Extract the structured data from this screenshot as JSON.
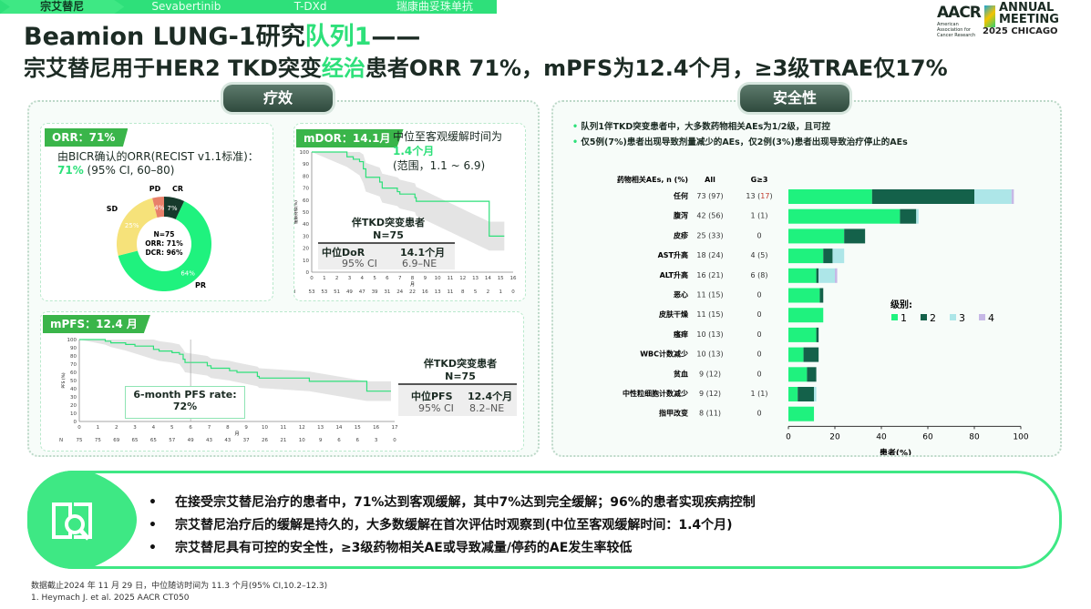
{
  "nav": {
    "items": [
      "宗艾替尼",
      "Sevabertinib",
      "T-DXd",
      "瑞康曲妥珠单抗"
    ],
    "active": 0
  },
  "title": {
    "line1_a": "Beamion LUNG-1研究",
    "line1_b": "队列1",
    "line1_c": "——",
    "line2_a": "宗艾替尼用于HER2 TKD突变",
    "line2_b": "经治",
    "line2_c": "患者ORR 71%，mPFS为12.4个月，≥3级TRAE仅17%"
  },
  "logo": {
    "org": "AACR",
    "org_sub": "American Association for Cancer Research",
    "event1": "ANNUAL",
    "event2": "MEETING",
    "event3": "2025 CHICAGO"
  },
  "sections": {
    "efficacy": "疗效",
    "safety": "安全性"
  },
  "orr": {
    "tag": "ORR：71%",
    "desc": "由BICR确认的ORR(RECIST v1.1标准)：",
    "value": "71%",
    "ci": " (95% CI, 60–80)",
    "center": [
      "N=75",
      "ORR: 71%",
      "DCR: 96%"
    ],
    "slices": [
      {
        "label": "CR",
        "value": 7,
        "color": "#163a2c"
      },
      {
        "label": "PR",
        "value": 64,
        "color": "#1ff27e"
      },
      {
        "label": "SD",
        "value": 25,
        "color": "#f6e27a"
      },
      {
        "label": "PD",
        "value": 4,
        "color": "#e8806a"
      }
    ]
  },
  "dor": {
    "tag": "mDOR：14.1月",
    "note1": "中位至客观缓解时间为",
    "note2": "1.4个月",
    "note3": "(范围，1.1 ~ 6.9)",
    "ylabel": "缓解持续(%)",
    "xlabel": "月",
    "group": "伴TKD突变患者",
    "n": "N=75",
    "row1": [
      "中位DoR",
      "14.1个月"
    ],
    "row2": [
      "95% CI",
      "6.9–NE"
    ],
    "xmax": 16,
    "risk_label": "N",
    "risk": [
      53,
      53,
      51,
      49,
      47,
      39,
      31,
      24,
      22,
      16,
      13,
      11,
      8,
      5,
      2,
      1,
      0
    ],
    "steps": [
      [
        0,
        100
      ],
      [
        2.8,
        96
      ],
      [
        3.3,
        94
      ],
      [
        3.8,
        92
      ],
      [
        4.1,
        86
      ],
      [
        4.3,
        79
      ],
      [
        5.4,
        75
      ],
      [
        5.6,
        70
      ],
      [
        6.8,
        67
      ],
      [
        7,
        65
      ],
      [
        8.2,
        62
      ],
      [
        8.3,
        59
      ],
      [
        14.1,
        30
      ],
      [
        15.3,
        30
      ]
    ]
  },
  "pfs": {
    "tag": "mPFS：12.4 月",
    "ylabel": "PFS (%)",
    "xlabel": "月",
    "rate_label": "6-month PFS rate:",
    "rate": "72%",
    "group": "伴TKD突变患者",
    "n": "N=75",
    "row1": [
      "中位PFS",
      "12.4个月"
    ],
    "row2": [
      "95% CI",
      "8.2–NE"
    ],
    "xmax": 17,
    "risk_label": "N",
    "risk": [
      75,
      75,
      69,
      65,
      65,
      57,
      49,
      43,
      43,
      37,
      26,
      21,
      10,
      9,
      6,
      6,
      3,
      0
    ],
    "steps": [
      [
        0,
        100
      ],
      [
        1.4,
        98
      ],
      [
        1.7,
        96
      ],
      [
        2.5,
        94
      ],
      [
        3,
        92
      ],
      [
        4,
        88
      ],
      [
        4.3,
        86
      ],
      [
        5,
        84
      ],
      [
        5.4,
        82
      ],
      [
        5.6,
        76
      ],
      [
        5.7,
        72
      ],
      [
        6.9,
        68
      ],
      [
        7.1,
        65
      ],
      [
        8.1,
        62
      ],
      [
        8.5,
        60
      ],
      [
        9.6,
        55
      ],
      [
        9.7,
        53
      ],
      [
        12.4,
        49
      ],
      [
        15.5,
        37
      ],
      [
        16.8,
        37
      ]
    ]
  },
  "safety": {
    "bullets": [
      "队列1伴TKD突变患者中，大多数药物相关AEs为1/2级，且可控",
      "仅5例(7%)患者出现导致剂量减少的AEs，仅2例(3%)患者出现导致治疗停止的AEs"
    ]
  },
  "chart_data": {
    "type": "bar",
    "stacked": true,
    "title": "药物相关AEs, n (%)",
    "col_all": "All",
    "col_g3": "G≥3",
    "xlabel": "患者(%)",
    "xlim": [
      0,
      100
    ],
    "xticks": [
      0,
      20,
      40,
      60,
      80,
      100
    ],
    "legend_title": "级别:",
    "series": [
      {
        "name": "1",
        "color": "#1ff27e"
      },
      {
        "name": "2",
        "color": "#14614a"
      },
      {
        "name": "3",
        "color": "#ade6e8"
      },
      {
        "name": "4",
        "color": "#c6b8e6"
      }
    ],
    "rows": [
      {
        "name": "任何",
        "all": "73 (97)",
        "g3": "13 (",
        "g3_hl": "17",
        "g3_end": ")",
        "values": [
          36,
          44,
          16,
          1
        ]
      },
      {
        "name": "腹泻",
        "all": "42 (56)",
        "g3": "1 (1)",
        "values": [
          48,
          7,
          1,
          0
        ]
      },
      {
        "name": "皮疹",
        "all": "25 (33)",
        "g3": "0",
        "values": [
          24,
          9,
          0,
          0
        ]
      },
      {
        "name": "AST升高",
        "all": "18 (24)",
        "g3": "4 (5)",
        "values": [
          15,
          4,
          5,
          0
        ]
      },
      {
        "name": "ALT升高",
        "all": "16 (21)",
        "g3": "6 (8)",
        "values": [
          12,
          1,
          7,
          1
        ]
      },
      {
        "name": "恶心",
        "all": "11 (15)",
        "g3": "0",
        "values": [
          13.5,
          1.5,
          0,
          0
        ]
      },
      {
        "name": "皮肤干燥",
        "all": "11 (15)",
        "g3": "0",
        "values": [
          15,
          0,
          0,
          0
        ]
      },
      {
        "name": "瘙痒",
        "all": "10 (13)",
        "g3": "0",
        "values": [
          12,
          1,
          0,
          0
        ]
      },
      {
        "name": "WBC计数减少",
        "all": "10 (13)",
        "g3": "0",
        "values": [
          6.5,
          6.5,
          0,
          0
        ]
      },
      {
        "name": "贫血",
        "all": "9 (12)",
        "g3": "0",
        "values": [
          8,
          4,
          0,
          0
        ]
      },
      {
        "name": "中性粒细胞计数减少",
        "all": "9 (12)",
        "g3": "1 (1)",
        "values": [
          4,
          7,
          1,
          0
        ]
      },
      {
        "name": "指甲改变",
        "all": "8 (11)",
        "g3": "0",
        "values": [
          11,
          0,
          0,
          0
        ]
      }
    ]
  },
  "summary": [
    "在接受宗艾替尼治疗的患者中，71%达到客观缓解，其中7%达到完全缓解；96%的患者实现疾病控制",
    "宗艾替尼治疗后的缓解是持久的，大多数缓解在首次评估时观察到(中位至客观缓解时间：1.4个月)",
    "宗艾替尼具有可控的安全性，≥3级药物相关AE或导致减量/停药的AE发生率较低"
  ],
  "bullet": "•",
  "footnotes": [
    "数据截止2024 年 11 月 29 日，中位随访时间为 11.3 个月(95% CI,10.2–12.3)",
    "1.    Heymach J. et al. 2025 AACR CT050"
  ]
}
